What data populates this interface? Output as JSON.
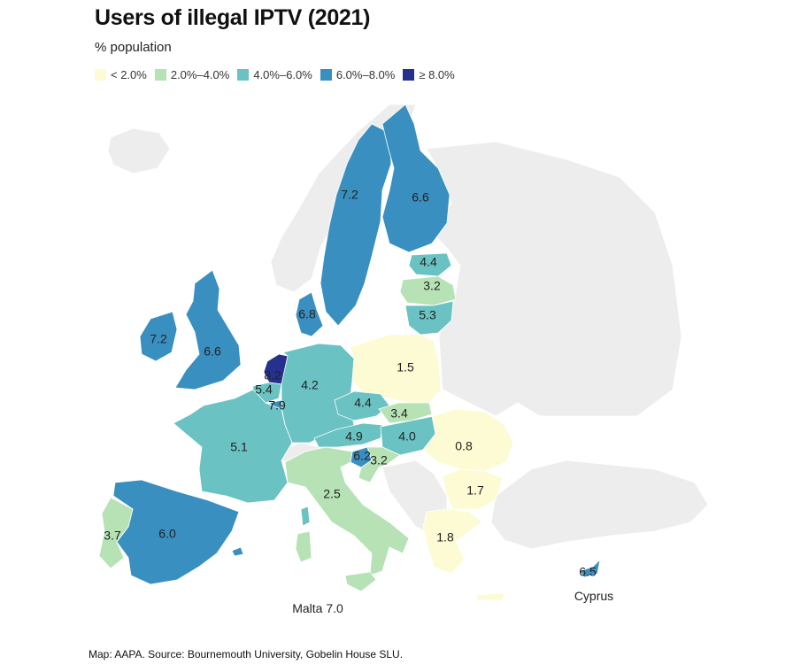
{
  "title": "Users of illegal IPTV (2021)",
  "subtitle": "% population",
  "legend": [
    {
      "label": "< 2.0%",
      "color": "#fdfbd3"
    },
    {
      "label": "2.0%–4.0%",
      "color": "#b7e2b5"
    },
    {
      "label": "4.0%–6.0%",
      "color": "#6ac2c2"
    },
    {
      "label": "6.0%–8.0%",
      "color": "#3a8fc1"
    },
    {
      "label": "≥ 8.0%",
      "color": "#25318c"
    }
  ],
  "countries": [
    {
      "name": "Sweden",
      "value": "7.2"
    },
    {
      "name": "Finland",
      "value": "6.6"
    },
    {
      "name": "Estonia",
      "value": "4.4"
    },
    {
      "name": "Latvia",
      "value": "3.2"
    },
    {
      "name": "Lithuania",
      "value": "5.3"
    },
    {
      "name": "Denmark",
      "value": "6.8"
    },
    {
      "name": "Ireland",
      "value": "7.2"
    },
    {
      "name": "United Kingdom",
      "value": "6.6"
    },
    {
      "name": "Netherlands",
      "value": "8.2"
    },
    {
      "name": "Belgium",
      "value": "5.4"
    },
    {
      "name": "Luxembourg",
      "value": "7.9"
    },
    {
      "name": "Germany",
      "value": "4.2"
    },
    {
      "name": "Poland",
      "value": "1.5"
    },
    {
      "name": "Czechia",
      "value": "4.4"
    },
    {
      "name": "Slovakia",
      "value": "3.4"
    },
    {
      "name": "Austria",
      "value": "4.9"
    },
    {
      "name": "Hungary",
      "value": "4.0"
    },
    {
      "name": "Slovenia",
      "value": "6.2"
    },
    {
      "name": "Croatia",
      "value": "3.2"
    },
    {
      "name": "Romania",
      "value": "0.8"
    },
    {
      "name": "Bulgaria",
      "value": "1.7"
    },
    {
      "name": "Greece",
      "value": "1.8"
    },
    {
      "name": "France",
      "value": "5.1"
    },
    {
      "name": "Italy",
      "value": "2.5"
    },
    {
      "name": "Spain",
      "value": "6.0"
    },
    {
      "name": "Portugal",
      "value": "3.7"
    },
    {
      "name": "Cyprus",
      "value": "6.5"
    }
  ],
  "annotations": {
    "malta": "Malta 7.0",
    "cyprus": "Cyprus"
  },
  "footer": "Map: AAPA. Source: Bournemouth University, Gobelin House SLU."
}
